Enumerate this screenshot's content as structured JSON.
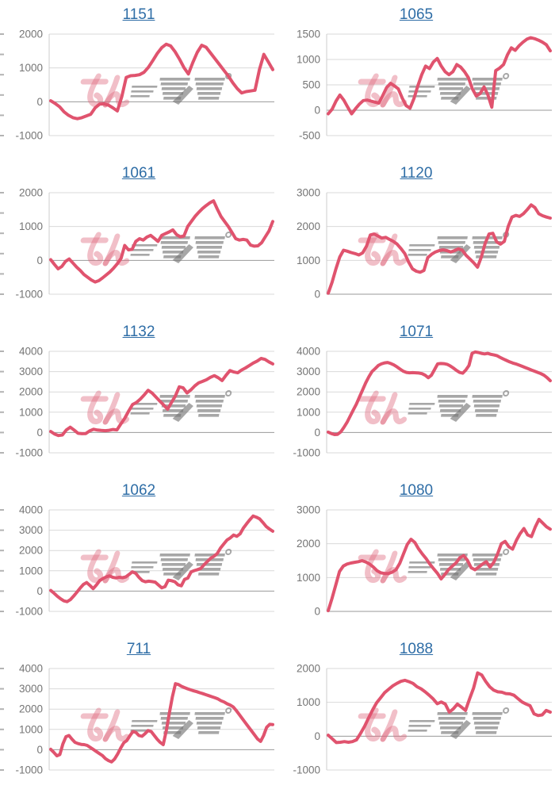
{
  "page": {
    "background": "#ffffff",
    "layout": "2x5-chart-grid"
  },
  "watermark": {
    "text": "みんレポ",
    "part1": "みん",
    "part2": "レポ"
  },
  "colors": {
    "line": "#e0536e",
    "title_link": "#2e6da6",
    "tick_label": "#757575",
    "gridline": "#d9d9d9",
    "zero_line": "#999999",
    "axis_line": "#cccccc",
    "cropped_tick": "#b3b3b3",
    "watermark_pink": "rgba(221,102,124,0.42)",
    "watermark_gray": "rgba(120,120,120,0.65)"
  },
  "chart_data": [
    {
      "type": "line",
      "title": "1151",
      "ylim": [
        -1000,
        2000
      ],
      "yticks": [
        2000,
        1000,
        0,
        -1000
      ],
      "grid": true,
      "legend": "none",
      "values": [
        30,
        -50,
        -150,
        -300,
        -400,
        -470,
        -500,
        -470,
        -420,
        -370,
        -180,
        -70,
        -60,
        -100,
        -180,
        -270,
        150,
        720,
        770,
        780,
        800,
        870,
        1020,
        1220,
        1430,
        1600,
        1700,
        1650,
        1480,
        1260,
        1010,
        820,
        1160,
        1460,
        1670,
        1610,
        1440,
        1270,
        1100,
        930,
        760,
        560,
        390,
        260,
        300,
        320,
        340,
        950,
        1400,
        1180,
        950
      ]
    },
    {
      "type": "line",
      "title": "1065",
      "ylim": [
        -500,
        1500
      ],
      "yticks": [
        1500,
        1000,
        500,
        0,
        -500
      ],
      "grid": true,
      "legend": "none",
      "values": [
        -70,
        20,
        180,
        300,
        200,
        60,
        -70,
        30,
        120,
        190,
        200,
        180,
        160,
        140,
        290,
        450,
        530,
        480,
        420,
        240,
        90,
        40,
        230,
        480,
        700,
        870,
        820,
        950,
        1020,
        870,
        760,
        700,
        760,
        900,
        850,
        760,
        640,
        420,
        280,
        330,
        460,
        300,
        60,
        780,
        830,
        900,
        1090,
        1230,
        1180,
        1270,
        1340,
        1400,
        1430,
        1410,
        1380,
        1340,
        1290,
        1170
      ]
    },
    {
      "type": "line",
      "title": "1061",
      "ylim": [
        -1000,
        2000
      ],
      "yticks": [
        2000,
        1000,
        0,
        -1000
      ],
      "grid": true,
      "legend": "none",
      "values": [
        20,
        -120,
        -250,
        -180,
        -30,
        40,
        -80,
        -200,
        -300,
        -420,
        -500,
        -580,
        -640,
        -600,
        -520,
        -430,
        -340,
        -230,
        -100,
        60,
        440,
        310,
        330,
        560,
        640,
        600,
        690,
        740,
        650,
        560,
        740,
        790,
        840,
        900,
        760,
        700,
        720,
        1000,
        1150,
        1300,
        1420,
        1530,
        1620,
        1700,
        1760,
        1520,
        1300,
        1150,
        1000,
        820,
        640,
        600,
        620,
        600,
        450,
        420,
        430,
        520,
        700,
        870,
        1150
      ]
    },
    {
      "type": "line",
      "title": "1120",
      "ylim": [
        0,
        3000
      ],
      "yticks": [
        3000,
        2000,
        1000,
        0
      ],
      "grid": true,
      "legend": "none",
      "values": [
        30,
        350,
        750,
        1100,
        1300,
        1270,
        1230,
        1200,
        1160,
        1220,
        1420,
        1750,
        1780,
        1720,
        1660,
        1680,
        1620,
        1560,
        1480,
        1350,
        1200,
        950,
        750,
        680,
        650,
        700,
        1080,
        1180,
        1250,
        1290,
        1310,
        1290,
        1250,
        1290,
        1340,
        1300,
        1150,
        1040,
        930,
        800,
        1100,
        1500,
        1780,
        1800,
        1550,
        1480,
        1560,
        2000,
        2280,
        2330,
        2300,
        2380,
        2500,
        2640,
        2560,
        2380,
        2320,
        2280,
        2250
      ]
    },
    {
      "type": "line",
      "title": "1132",
      "ylim": [
        -1000,
        4000
      ],
      "yticks": [
        4000,
        3000,
        2000,
        1000,
        0,
        -1000
      ],
      "grid": true,
      "legend": "none",
      "values": [
        50,
        -80,
        -150,
        -120,
        120,
        260,
        120,
        -40,
        -60,
        -50,
        80,
        160,
        120,
        100,
        90,
        110,
        150,
        130,
        420,
        700,
        1050,
        1380,
        1480,
        1650,
        1850,
        2080,
        1950,
        1750,
        1550,
        1350,
        1150,
        1480,
        1800,
        2250,
        2200,
        1950,
        2100,
        2300,
        2450,
        2520,
        2600,
        2720,
        2800,
        2700,
        2560,
        2820,
        3050,
        2980,
        2940,
        3080,
        3180,
        3300,
        3420,
        3520,
        3650,
        3600,
        3480,
        3380
      ]
    },
    {
      "type": "line",
      "title": "1071",
      "ylim": [
        -1000,
        4000
      ],
      "yticks": [
        4000,
        3000,
        2000,
        1000,
        0,
        -1000
      ],
      "grid": true,
      "legend": "none",
      "values": [
        20,
        -50,
        -100,
        -90,
        30,
        250,
        500,
        800,
        1100,
        1400,
        1750,
        2100,
        2450,
        2750,
        3000,
        3150,
        3300,
        3380,
        3430,
        3450,
        3400,
        3330,
        3230,
        3120,
        3020,
        2960,
        2940,
        2950,
        2940,
        2930,
        2900,
        2820,
        2700,
        2820,
        3100,
        3380,
        3400,
        3390,
        3360,
        3280,
        3180,
        3060,
        2960,
        2920,
        3080,
        3300,
        3900,
        3970,
        3940,
        3900,
        3870,
        3900,
        3850,
        3820,
        3780,
        3700,
        3620,
        3550,
        3480,
        3420,
        3380,
        3320,
        3260,
        3200,
        3140,
        3080,
        3020,
        2960,
        2900,
        2820,
        2700,
        2550
      ]
    },
    {
      "type": "line",
      "title": "1062",
      "ylim": [
        -1000,
        4000
      ],
      "yticks": [
        4000,
        3000,
        2000,
        1000,
        0,
        -1000
      ],
      "grid": true,
      "legend": "none",
      "values": [
        30,
        -100,
        -250,
        -380,
        -480,
        -520,
        -420,
        -250,
        -60,
        150,
        330,
        420,
        280,
        120,
        300,
        520,
        620,
        700,
        750,
        680,
        650,
        680,
        660,
        700,
        820,
        950,
        880,
        680,
        520,
        460,
        490,
        470,
        440,
        300,
        160,
        220,
        540,
        510,
        460,
        310,
        260,
        580,
        640,
        950,
        1010,
        1060,
        1120,
        1300,
        1460,
        1620,
        1720,
        1850,
        2120,
        2320,
        2520,
        2620,
        2760,
        2700,
        2820,
        3100,
        3320,
        3520,
        3700,
        3640,
        3560,
        3380,
        3180,
        3060,
        2950
      ]
    },
    {
      "type": "line",
      "title": "1080",
      "ylim": [
        0,
        3000
      ],
      "yticks": [
        3000,
        2000,
        1000,
        0
      ],
      "grid": true,
      "legend": "none",
      "values": [
        20,
        380,
        780,
        1180,
        1340,
        1400,
        1430,
        1450,
        1470,
        1500,
        1460,
        1400,
        1310,
        1200,
        1140,
        1120,
        1120,
        1160,
        1230,
        1420,
        1700,
        1980,
        2130,
        2040,
        1850,
        1700,
        1560,
        1400,
        1260,
        1130,
        960,
        1090,
        1240,
        1340,
        1440,
        1590,
        1650,
        1510,
        1290,
        1230,
        1310,
        1400,
        1470,
        1310,
        1450,
        1700,
        2000,
        2070,
        1910,
        1840,
        2100,
        2300,
        2450,
        2260,
        2210,
        2490,
        2720,
        2610,
        2500,
        2430
      ]
    },
    {
      "type": "line",
      "title": "711",
      "ylim": [
        -1000,
        4000
      ],
      "yticks": [
        4000,
        3000,
        2000,
        1000,
        0,
        -1000
      ],
      "grid": true,
      "legend": "none",
      "values": [
        20,
        -130,
        -300,
        -240,
        280,
        640,
        700,
        520,
        360,
        300,
        260,
        250,
        210,
        110,
        10,
        -90,
        -190,
        -290,
        -440,
        -540,
        -600,
        -460,
        -210,
        80,
        340,
        450,
        680,
        890,
        850,
        700,
        660,
        790,
        940,
        900,
        710,
        520,
        360,
        250,
        950,
        1800,
        2600,
        3250,
        3210,
        3120,
        3060,
        3000,
        2950,
        2900,
        2860,
        2810,
        2760,
        2710,
        2660,
        2610,
        2560,
        2500,
        2410,
        2350,
        2260,
        2200,
        2110,
        1930,
        1730,
        1530,
        1330,
        1130,
        930,
        730,
        530,
        410,
        700,
        1100,
        1250,
        1240
      ]
    },
    {
      "type": "line",
      "title": "1088",
      "ylim": [
        -1000,
        2000
      ],
      "yticks": [
        2000,
        1000,
        0,
        -1000
      ],
      "grid": true,
      "legend": "none",
      "values": [
        30,
        -80,
        -190,
        -180,
        -160,
        -180,
        -160,
        -110,
        80,
        290,
        540,
        780,
        990,
        1140,
        1290,
        1390,
        1490,
        1560,
        1620,
        1650,
        1610,
        1560,
        1460,
        1400,
        1310,
        1210,
        1100,
        960,
        1010,
        950,
        710,
        810,
        950,
        860,
        760,
        1100,
        1420,
        1870,
        1810,
        1620,
        1460,
        1360,
        1310,
        1300,
        1260,
        1250,
        1210,
        1110,
        1010,
        950,
        900,
        660,
        610,
        630,
        760,
        710
      ]
    }
  ]
}
